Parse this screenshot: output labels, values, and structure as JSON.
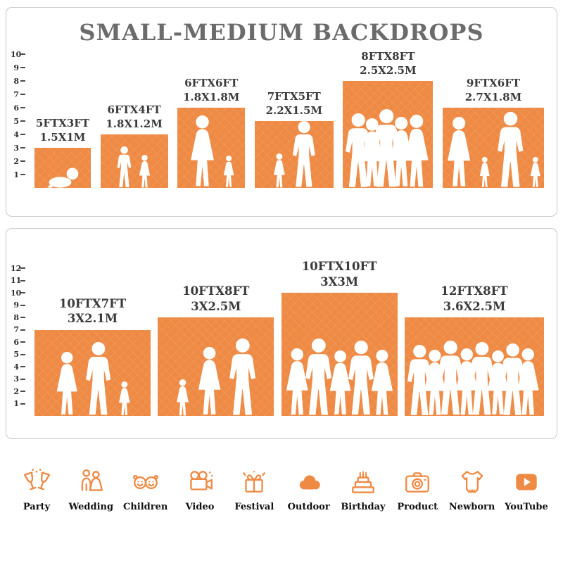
{
  "title": "SMALL-MEDIUM BACKDROPS",
  "colors": {
    "accent": "#EE8A44",
    "title_gray": "#6b6b6b",
    "label_dark": "#3a3a3a"
  },
  "panels": [
    {
      "name": "small-medium-backdrops",
      "ruler_max": 10,
      "items": [
        {
          "size_ft": "5FTX3FT",
          "size_m": "1.5X1M",
          "w_ft": 5,
          "h_ft": 3,
          "people": [
            {
              "type": "baby",
              "h_ft": 1.6
            }
          ]
        },
        {
          "size_ft": "6FTX4FT",
          "size_m": "1.8X1.2M",
          "w_ft": 6,
          "h_ft": 4,
          "people": [
            {
              "type": "boy",
              "h_ft": 3.1
            },
            {
              "type": "girl",
              "h_ft": 2.5
            }
          ]
        },
        {
          "size_ft": "6FTX6FT",
          "size_m": "1.8X1.8M",
          "w_ft": 6,
          "h_ft": 6,
          "people": [
            {
              "type": "woman",
              "h_ft": 5.4
            },
            {
              "type": "girl",
              "h_ft": 2.4
            }
          ]
        },
        {
          "size_ft": "7FTX5FT",
          "size_m": "2.2X1.5M",
          "w_ft": 7,
          "h_ft": 5,
          "people": [
            {
              "type": "girl",
              "h_ft": 2.6
            },
            {
              "type": "man",
              "h_ft": 5.0
            }
          ]
        },
        {
          "size_ft": "8FTX8FT",
          "size_m": "2.5X2.5M",
          "w_ft": 8,
          "h_ft": 8,
          "people": [
            {
              "type": "man",
              "h_ft": 5.6
            },
            {
              "type": "woman",
              "h_ft": 5.2
            },
            {
              "type": "man",
              "h_ft": 5.9
            },
            {
              "type": "woman",
              "h_ft": 5.3
            },
            {
              "type": "woman",
              "h_ft": 5.5
            }
          ]
        },
        {
          "size_ft": "9FTX6FT",
          "size_m": "2.7X1.8M",
          "w_ft": 9,
          "h_ft": 6,
          "people": [
            {
              "type": "woman",
              "h_ft": 5.3
            },
            {
              "type": "girl",
              "h_ft": 2.3
            },
            {
              "type": "man",
              "h_ft": 5.7
            },
            {
              "type": "girl",
              "h_ft": 2.3
            }
          ]
        }
      ]
    },
    {
      "name": "large-backdrops",
      "ruler_max": 12,
      "items": [
        {
          "size_ft": "10FTX7FT",
          "size_m": "3X2.1M",
          "w_ft": 10,
          "h_ft": 7,
          "people": [
            {
              "type": "woman",
              "h_ft": 5.2
            },
            {
              "type": "man",
              "h_ft": 6.0
            },
            {
              "type": "girl",
              "h_ft": 2.8
            }
          ]
        },
        {
          "size_ft": "10FTX8FT",
          "size_m": "3X2.5M",
          "w_ft": 10,
          "h_ft": 8,
          "people": [
            {
              "type": "girl",
              "h_ft": 3.0
            },
            {
              "type": "woman",
              "h_ft": 5.6
            },
            {
              "type": "man",
              "h_ft": 6.3
            }
          ]
        },
        {
          "size_ft": "10FTX10FT",
          "size_m": "3X3M",
          "w_ft": 10,
          "h_ft": 10,
          "people": [
            {
              "type": "woman",
              "h_ft": 5.5
            },
            {
              "type": "man",
              "h_ft": 6.3
            },
            {
              "type": "woman",
              "h_ft": 5.3
            },
            {
              "type": "man",
              "h_ft": 6.1
            },
            {
              "type": "woman",
              "h_ft": 5.4
            }
          ]
        },
        {
          "size_ft": "12FTX8FT",
          "size_m": "3.6X2.5M",
          "w_ft": 12,
          "h_ft": 8,
          "people": [
            {
              "type": "man",
              "h_ft": 5.8
            },
            {
              "type": "woman",
              "h_ft": 5.4
            },
            {
              "type": "man",
              "h_ft": 6.1
            },
            {
              "type": "woman",
              "h_ft": 5.5
            },
            {
              "type": "man",
              "h_ft": 6.0
            },
            {
              "type": "woman",
              "h_ft": 5.3
            },
            {
              "type": "man",
              "h_ft": 5.9
            },
            {
              "type": "woman",
              "h_ft": 5.5
            }
          ]
        }
      ]
    }
  ],
  "categories": [
    {
      "label": "Party",
      "icon": "party-icon"
    },
    {
      "label": "Wedding",
      "icon": "wedding-icon"
    },
    {
      "label": "Children",
      "icon": "children-icon"
    },
    {
      "label": "Video",
      "icon": "video-icon"
    },
    {
      "label": "Festival",
      "icon": "festival-icon"
    },
    {
      "label": "Outdoor",
      "icon": "outdoor-icon"
    },
    {
      "label": "Birthday",
      "icon": "birthday-icon"
    },
    {
      "label": "Product",
      "icon": "product-icon"
    },
    {
      "label": "Newborn",
      "icon": "newborn-icon"
    },
    {
      "label": "YouTube",
      "icon": "youtube-icon"
    }
  ]
}
